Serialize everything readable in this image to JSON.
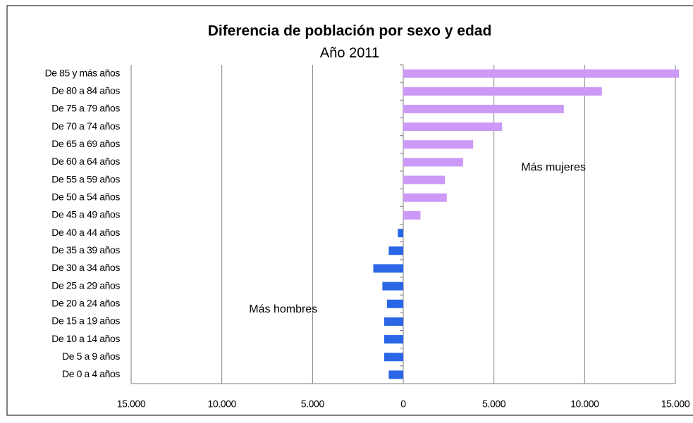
{
  "chart_data": {
    "type": "bar",
    "orientation": "horizontal",
    "title": "Diferencia de población por sexo y edad",
    "subtitle": "Año 2011",
    "categories": [
      "De 85 y más años",
      "De 80 a 84 años",
      "De 75 a 79 años",
      "De 70 a 74 años",
      "De 65 a 69 años",
      "De 60 a 64 años",
      "De 55 a 59 años",
      "De 50 a 54 años",
      "De 45 a 49 años",
      "De 40 a 44 años",
      "De 35 a 39 años",
      "De 30 a 34 años",
      "De 25 a 29 años",
      "De 20 a 24 años",
      "De 15 a 19 años",
      "De 10 a 14 años",
      "De 5 a 9 años",
      "De 0 a 4 años"
    ],
    "values": [
      15200,
      10950,
      8850,
      5450,
      3850,
      3300,
      2300,
      2400,
      950,
      -300,
      -800,
      -1650,
      -1150,
      -900,
      -1050,
      -1050,
      -1050,
      -800
    ],
    "positive_color": "#cc99f7",
    "negative_color": "#2a66e6",
    "xlim": [
      -15000,
      15000
    ],
    "xticks": [
      {
        "value": -15000,
        "label": "15.000"
      },
      {
        "value": -10000,
        "label": "10.000"
      },
      {
        "value": -5000,
        "label": "5.000"
      },
      0,
      {
        "value": 5000,
        "label": "5.000"
      },
      {
        "value": 10000,
        "label": "10.000"
      },
      {
        "value": 15000,
        "label": "15.000"
      }
    ],
    "grid": true,
    "annotations": [
      {
        "text": "Más mujeres",
        "x": 6500,
        "category": "De 60 a 64 años"
      },
      {
        "text": "Más hombres",
        "x": -8500,
        "category": "De 20 a 24 años"
      }
    ]
  }
}
